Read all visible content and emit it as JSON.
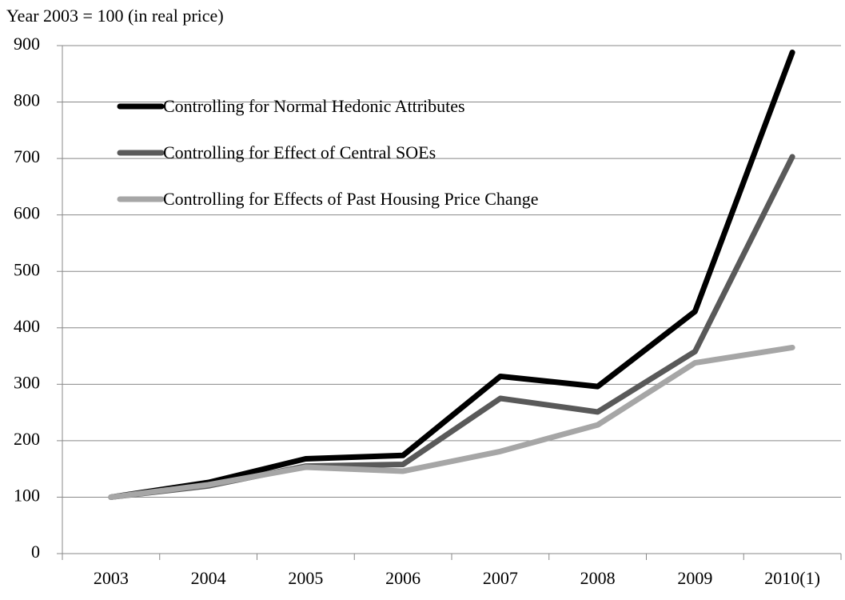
{
  "chart_data": {
    "type": "line",
    "y_label": "Year 2003 = 100 (in real price)",
    "categories": [
      "2003",
      "2004",
      "2005",
      "2006",
      "2007",
      "2008",
      "2009",
      "2010(1)"
    ],
    "series": [
      {
        "name": "Controlling for Normal Hedonic Attributes",
        "color": "#000000",
        "values": [
          100,
          126,
          168,
          174,
          314,
          296,
          429,
          888
        ]
      },
      {
        "name": "Controlling for Effect of Central SOEs",
        "color": "#595959",
        "values": [
          100,
          120,
          155,
          158,
          275,
          251,
          358,
          703
        ]
      },
      {
        "name": "Controlling for Effects of Past Housing Price Change",
        "color": "#a6a6a6",
        "values": [
          100,
          122,
          153,
          146,
          181,
          228,
          338,
          365
        ]
      }
    ],
    "ylim": [
      0,
      900
    ],
    "yticks": [
      0,
      100,
      200,
      300,
      400,
      500,
      600,
      700,
      800,
      900
    ],
    "grid": true,
    "legend": "upper left"
  }
}
